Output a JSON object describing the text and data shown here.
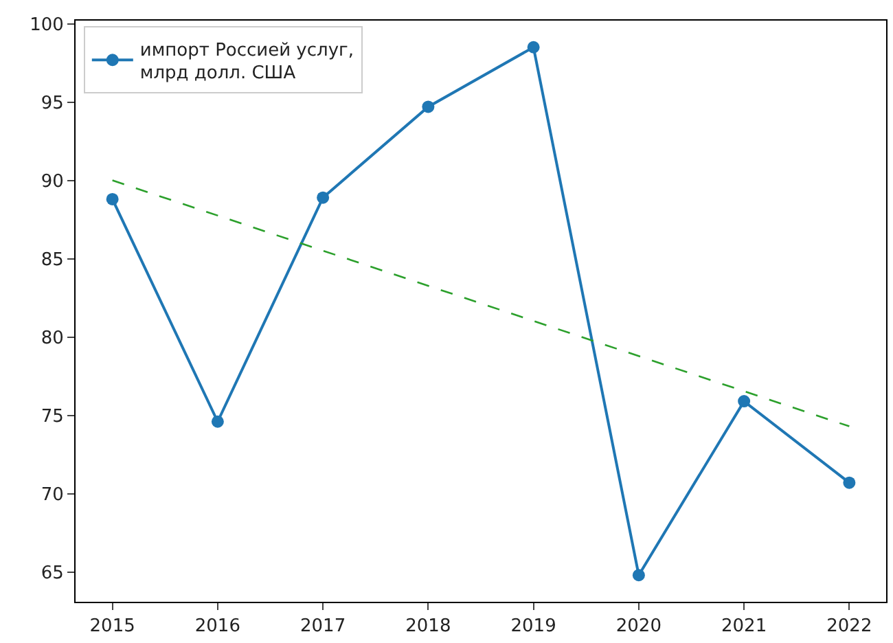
{
  "chart_data": {
    "type": "line",
    "x": [
      2015,
      2016,
      2017,
      2018,
      2019,
      2020,
      2021,
      2022
    ],
    "series": [
      {
        "name": "импорт Россией услуг,\nмлрд долл. США",
        "color": "#1f77b4",
        "marker": "circle",
        "line_style": "solid",
        "values": [
          88.8,
          74.6,
          88.9,
          94.7,
          98.5,
          64.8,
          75.9,
          70.7
        ]
      },
      {
        "type": "line",
        "color": "#2ca02c",
        "marker": "none",
        "line_style": "dashed",
        "x": [
          2015,
          2022
        ],
        "values": [
          90.0,
          74.3
        ]
      }
    ],
    "xlim": [
      2014.65,
      2022.35
    ],
    "xticks": [
      2015,
      2016,
      2017,
      2018,
      2019,
      2020,
      2021,
      2022
    ],
    "ylim": [
      63.1,
      100.2
    ],
    "yticks": [
      65,
      70,
      75,
      80,
      85,
      90,
      95,
      100
    ],
    "legend": "top left"
  }
}
